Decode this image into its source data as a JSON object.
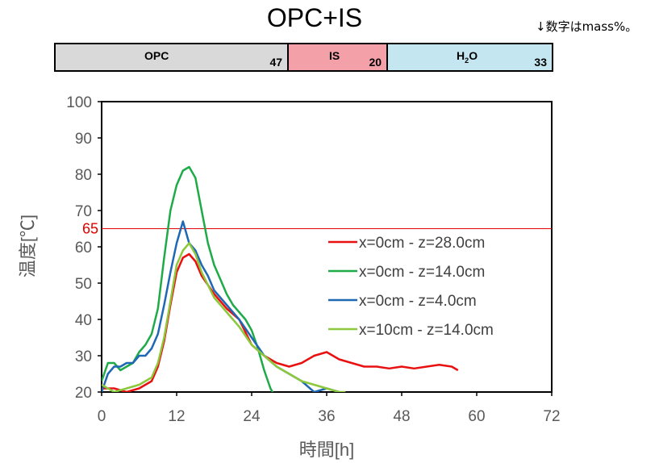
{
  "header": {
    "title": "OPC+IS",
    "note": "↓数字はmass%。"
  },
  "composition": [
    {
      "label": "OPC",
      "sub": "",
      "value": 47,
      "color": "#d9d9d9"
    },
    {
      "label": "IS",
      "sub": "",
      "value": 20,
      "color": "#f4a0a8"
    },
    {
      "label": "H",
      "sub": "2",
      "label_tail": "O",
      "value": 33,
      "color": "#c3e6f0"
    }
  ],
  "chart_data": {
    "type": "line",
    "xlabel": "時間[h]",
    "ylabel": "温度[℃]",
    "xlim": [
      0,
      72
    ],
    "ylim": [
      20,
      100
    ],
    "xticks": [
      0,
      12,
      24,
      36,
      48,
      60,
      72
    ],
    "yticks": [
      20,
      30,
      40,
      50,
      60,
      70,
      80,
      90,
      100
    ],
    "grid": false,
    "legend_position": "right-center",
    "reference_line": {
      "y": 65,
      "label": "65",
      "color": "#e00000"
    },
    "series": [
      {
        "name": "x=0cm - z=28.0cm",
        "color": "#e81010",
        "x": [
          0,
          2,
          4,
          6,
          8,
          9,
          10,
          11,
          12,
          13,
          14,
          15,
          16,
          18,
          20,
          22,
          24,
          26,
          28,
          30,
          32,
          34,
          36,
          38,
          40,
          42,
          44,
          46,
          48,
          50,
          52,
          54,
          56,
          57
        ],
        "y": [
          21,
          21,
          20,
          21,
          23,
          27,
          34,
          44,
          53,
          57,
          58,
          56,
          52,
          47,
          43,
          40,
          33,
          30,
          28,
          27,
          28,
          30,
          31,
          29,
          28,
          27,
          27,
          26.5,
          27,
          26.5,
          27,
          27.5,
          27,
          26
        ]
      },
      {
        "name": "x=0cm - z=14.0cm",
        "color": "#1faa48",
        "x": [
          0,
          1,
          2,
          3,
          4,
          5,
          6,
          7,
          8,
          9,
          10,
          11,
          12,
          13,
          14,
          15,
          16,
          17,
          18,
          19,
          20,
          21,
          22,
          23,
          24,
          25,
          26,
          27,
          28
        ],
        "y": [
          23,
          28,
          28,
          26,
          27,
          28,
          31,
          33,
          36,
          43,
          57,
          70,
          77,
          81,
          82,
          79,
          70,
          61,
          55,
          51,
          47,
          44,
          42,
          40,
          37,
          32,
          26,
          21,
          18
        ]
      },
      {
        "name": "x=0cm - z=4.0cm",
        "color": "#1f68b4",
        "x": [
          0,
          1,
          2,
          3,
          4,
          5,
          6,
          7,
          8,
          9,
          10,
          11,
          12,
          13,
          14,
          15,
          16,
          17,
          18,
          20,
          22,
          24,
          26,
          28,
          30,
          32,
          34,
          36,
          38
        ],
        "y": [
          20,
          25,
          27,
          27,
          28,
          28,
          30,
          30,
          32,
          36,
          44,
          53,
          61,
          67,
          61,
          59,
          55,
          52,
          48,
          44,
          40,
          35,
          30,
          27,
          25,
          23,
          20,
          21,
          20
        ]
      },
      {
        "name": "x=10cm - z=14.0cm",
        "color": "#8cc83c",
        "x": [
          0,
          2,
          4,
          6,
          8,
          9,
          10,
          11,
          12,
          13,
          14,
          15,
          16,
          18,
          20,
          22,
          24,
          26,
          28,
          30,
          32,
          34,
          36,
          38,
          39
        ],
        "y": [
          22,
          20,
          21,
          22,
          24,
          28,
          35,
          45,
          55,
          59,
          61,
          58,
          53,
          46,
          42,
          38,
          33,
          30,
          27,
          25,
          23,
          22,
          21,
          20,
          20
        ]
      }
    ]
  }
}
